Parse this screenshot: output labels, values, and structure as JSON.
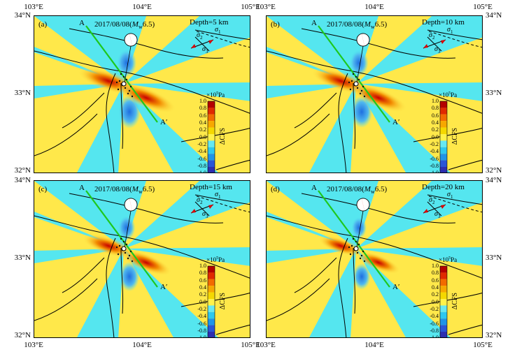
{
  "axes": {
    "x_ticks": [
      "103°E",
      "104°E",
      "105°E"
    ],
    "y_ticks": [
      "34°N",
      "33°N",
      "32°N"
    ]
  },
  "event": {
    "prefix": "2017/08/08(",
    "mag_symbol": "M",
    "mag_sub": "w",
    "suffix": "6.5)"
  },
  "profile": {
    "start": "A",
    "end": "A′"
  },
  "stress_axes": {
    "sigma": "σ",
    "s1": "1",
    "s2": "2",
    "s3": "3"
  },
  "colorbar": {
    "unit_prefix": "×10",
    "unit_exp": "5",
    "unit_suffix": "Pa",
    "labels": [
      "1.0",
      "0.8",
      "0.6",
      "0.4",
      "0.2",
      "0.0",
      "-0.2",
      "-0.4",
      "-0.6",
      "-0.8",
      "-1.0"
    ],
    "title_delta": "ΔCFS",
    "colors": [
      "#b40000",
      "#e02a00",
      "#f26b00",
      "#f7a800",
      "#f5d800",
      "#fff24a",
      "#66e8f2",
      "#2ec8ef",
      "#1f94e8",
      "#2a55d6",
      "#2d2fb0"
    ]
  },
  "colors": {
    "positive_strong": "#c80000",
    "positive_mid": "#f28a00",
    "positive_weak": "#ffe84a",
    "negative_weak": "#55e6ef",
    "negative_strong": "#1f6fe0",
    "profile_line": "#1ec81e",
    "beachball": "#d60000"
  },
  "panels": [
    {
      "id": "a",
      "label": "(a)",
      "depth": "Depth=5 km",
      "intensity": 1.0
    },
    {
      "id": "b",
      "label": "(b)",
      "depth": "Depth=10 km",
      "intensity": 0.9
    },
    {
      "id": "c",
      "label": "(c)",
      "depth": "Depth=15 km",
      "intensity": 0.7
    },
    {
      "id": "d",
      "label": "(d)",
      "depth": "Depth=20 km",
      "intensity": 0.45
    }
  ]
}
